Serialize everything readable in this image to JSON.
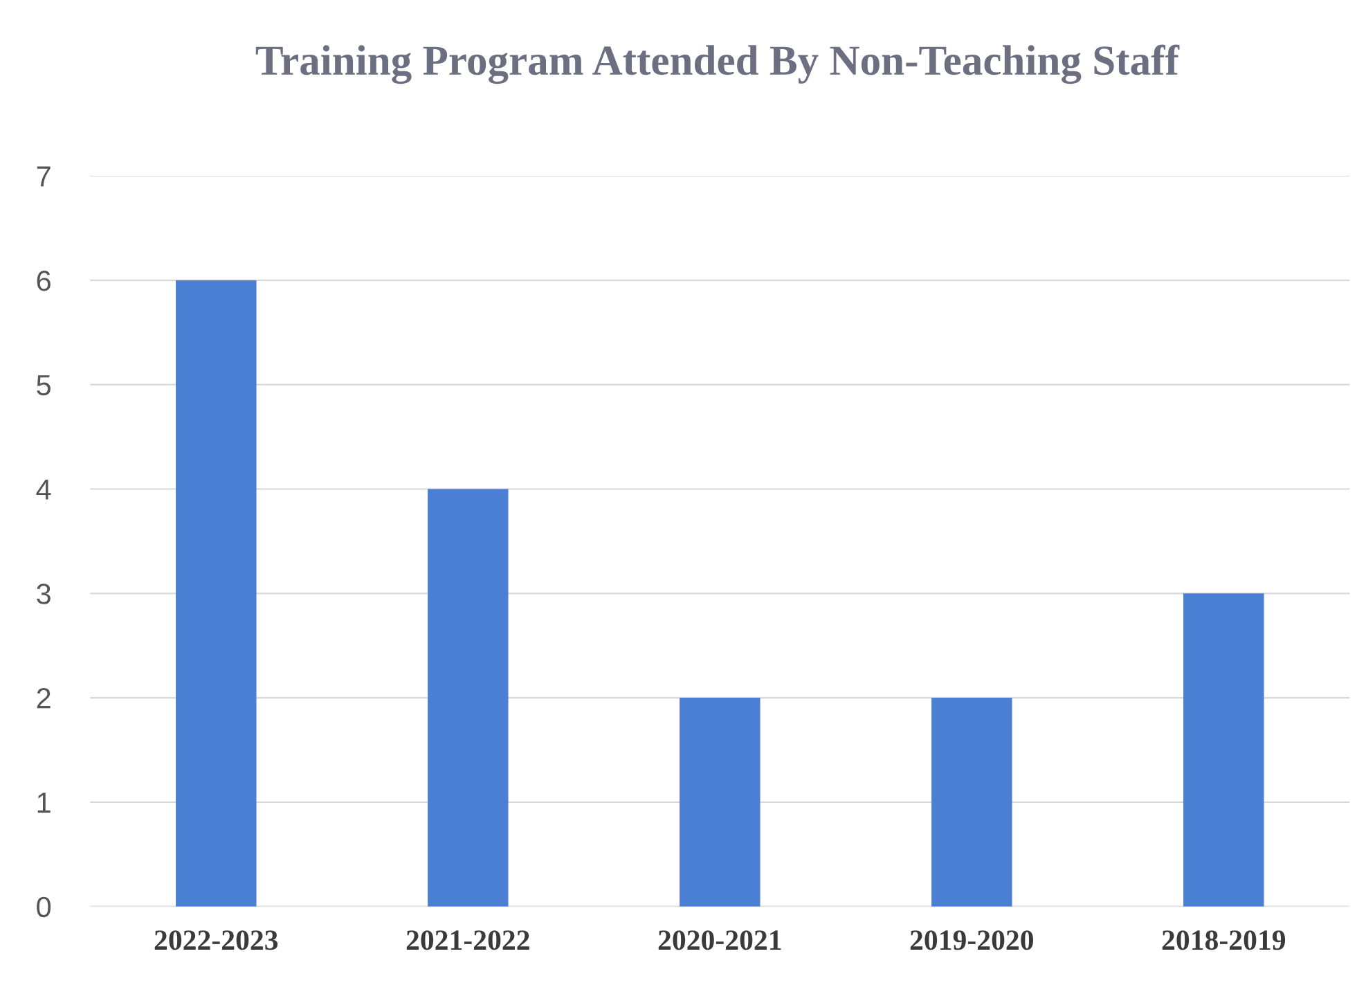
{
  "chart_data": {
    "type": "bar",
    "title": "Training Program Attended By Non-Teaching Staff",
    "categories": [
      "2022-2023",
      "2021-2022",
      "2020-2021",
      "2019-2020",
      "2018-2019"
    ],
    "values": [
      6,
      4,
      2,
      2,
      3
    ],
    "color": "#4a7fd4",
    "ylim": [
      0,
      7
    ],
    "yticks": [
      0,
      1,
      2,
      3,
      4,
      5,
      6,
      7
    ],
    "grid": "y"
  }
}
